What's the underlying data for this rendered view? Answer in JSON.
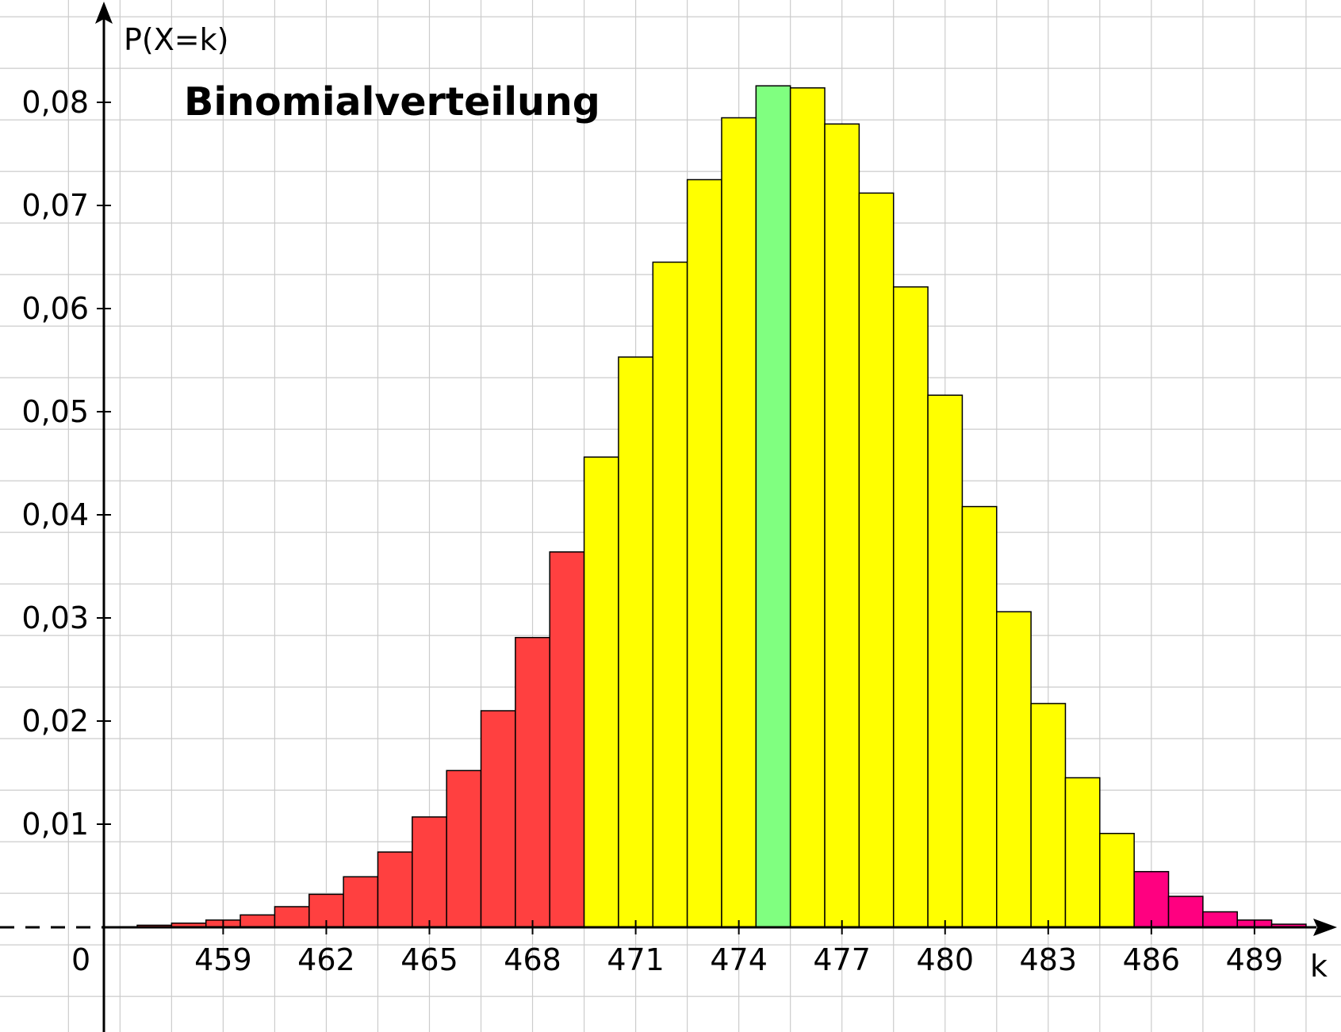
{
  "chart_data": {
    "type": "bar",
    "title": "Binomialverteilung",
    "ylabel": "P(X=k)",
    "xlabel": "k",
    "origin_label": "0",
    "grid": true,
    "x_range": [
      454,
      491.5
    ],
    "ylim": [
      -0.0117,
      0.09
    ],
    "x_ticks": [
      459,
      462,
      465,
      468,
      471,
      474,
      477,
      480,
      483,
      486,
      489
    ],
    "x_tick_labels": [
      "459",
      "462",
      "465",
      "468",
      "471",
      "474",
      "477",
      "480",
      "483",
      "486",
      "489"
    ],
    "y_ticks": [
      0.01,
      0.02,
      0.03,
      0.04,
      0.05,
      0.06,
      0.07,
      0.08
    ],
    "y_tick_labels": [
      "0,01",
      "0,02",
      "0,03",
      "0,04",
      "0,05",
      "0,06",
      "0,07",
      "0,08"
    ],
    "colors": {
      "left_tail": "#ff4040",
      "middle": "#ffff00",
      "mode": "#80ff80",
      "right_tail": "#ff0080",
      "grid": "#cccccc",
      "axis": "#000000"
    },
    "bars": [
      {
        "k": 457,
        "p": 0.0002,
        "color": "left_tail"
      },
      {
        "k": 458,
        "p": 0.0004,
        "color": "left_tail"
      },
      {
        "k": 459,
        "p": 0.0007,
        "color": "left_tail"
      },
      {
        "k": 460,
        "p": 0.0012,
        "color": "left_tail"
      },
      {
        "k": 461,
        "p": 0.002,
        "color": "left_tail"
      },
      {
        "k": 462,
        "p": 0.0032,
        "color": "left_tail"
      },
      {
        "k": 463,
        "p": 0.0049,
        "color": "left_tail"
      },
      {
        "k": 464,
        "p": 0.0073,
        "color": "left_tail"
      },
      {
        "k": 465,
        "p": 0.0107,
        "color": "left_tail"
      },
      {
        "k": 466,
        "p": 0.0152,
        "color": "left_tail"
      },
      {
        "k": 467,
        "p": 0.021,
        "color": "left_tail"
      },
      {
        "k": 468,
        "p": 0.0281,
        "color": "left_tail"
      },
      {
        "k": 469,
        "p": 0.0364,
        "color": "left_tail"
      },
      {
        "k": 470,
        "p": 0.0456,
        "color": "middle"
      },
      {
        "k": 471,
        "p": 0.0553,
        "color": "middle"
      },
      {
        "k": 472,
        "p": 0.0645,
        "color": "middle"
      },
      {
        "k": 473,
        "p": 0.0725,
        "color": "middle"
      },
      {
        "k": 474,
        "p": 0.0785,
        "color": "middle"
      },
      {
        "k": 475,
        "p": 0.0816,
        "color": "mode"
      },
      {
        "k": 476,
        "p": 0.0814,
        "color": "middle"
      },
      {
        "k": 477,
        "p": 0.0779,
        "color": "middle"
      },
      {
        "k": 478,
        "p": 0.0712,
        "color": "middle"
      },
      {
        "k": 479,
        "p": 0.0621,
        "color": "middle"
      },
      {
        "k": 480,
        "p": 0.0516,
        "color": "middle"
      },
      {
        "k": 481,
        "p": 0.0408,
        "color": "middle"
      },
      {
        "k": 482,
        "p": 0.0306,
        "color": "middle"
      },
      {
        "k": 483,
        "p": 0.0217,
        "color": "middle"
      },
      {
        "k": 484,
        "p": 0.0145,
        "color": "middle"
      },
      {
        "k": 485,
        "p": 0.0091,
        "color": "middle"
      },
      {
        "k": 486,
        "p": 0.0054,
        "color": "right_tail"
      },
      {
        "k": 487,
        "p": 0.003,
        "color": "right_tail"
      },
      {
        "k": 488,
        "p": 0.0015,
        "color": "right_tail"
      },
      {
        "k": 489,
        "p": 0.0007,
        "color": "right_tail"
      },
      {
        "k": 490,
        "p": 0.0003,
        "color": "right_tail"
      }
    ]
  }
}
